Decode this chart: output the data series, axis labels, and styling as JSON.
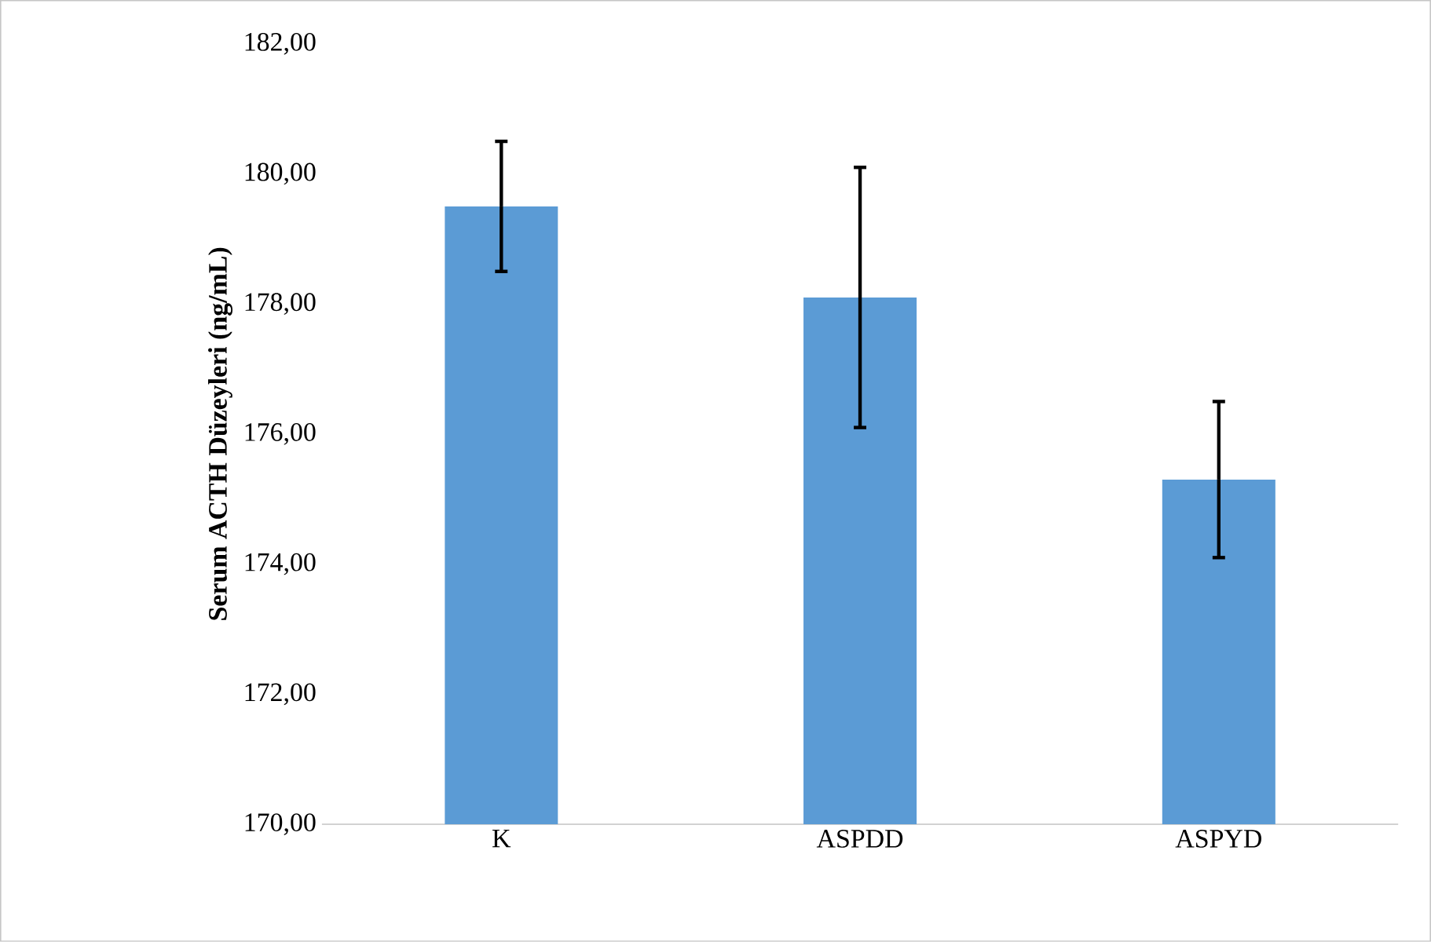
{
  "chart_data": {
    "type": "bar",
    "ylabel": "Serum ACTH Düzeyleri (ng/mL)",
    "categories": [
      "K",
      "ASPDD",
      "ASPYD"
    ],
    "values": [
      179.5,
      178.1,
      175.3
    ],
    "errors": [
      1.0,
      2.0,
      1.2
    ],
    "color": "#5b9bd5",
    "ylim": [
      170,
      182
    ],
    "yticks": [
      {
        "value": 170,
        "label": "170,00"
      },
      {
        "value": 172,
        "label": "172,00"
      },
      {
        "value": 174,
        "label": "174,00"
      },
      {
        "value": 176,
        "label": "176,00"
      },
      {
        "value": 178,
        "label": "178,00"
      },
      {
        "value": 180,
        "label": "180,00"
      },
      {
        "value": 182,
        "label": "182,00"
      }
    ]
  }
}
